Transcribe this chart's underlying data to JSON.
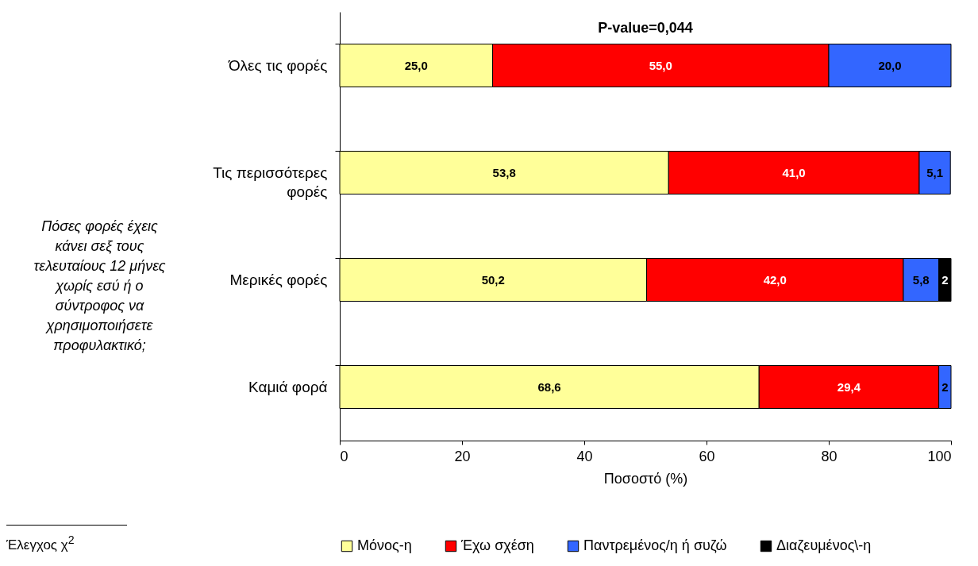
{
  "chart_data": {
    "type": "bar",
    "orientation": "horizontal",
    "stacked": true,
    "title": "P-value=0,044",
    "xlabel": "Ποσοστό (%)",
    "ylabel": "Πόσες φορές έχεις κάνει σεξ τους τελευταίους 12 μήνες χωρίς εσύ ή ο σύντροφος να χρησιμοποιήσετε προφυλακτικό;",
    "categories": [
      "Όλες τις φορές",
      "Τις περισσότερες φορές",
      "Μερικές φορές",
      "Καμιά φορά"
    ],
    "series": [
      {
        "name": "Μόνος-η",
        "color": "#ffff99",
        "values": [
          25.0,
          53.8,
          50.2,
          68.6
        ],
        "value_labels": [
          "25,0",
          "53,8",
          "50,2",
          "68,6"
        ]
      },
      {
        "name": "Έχω σχέση",
        "color": "#ff0000",
        "values": [
          55.0,
          41.0,
          42.0,
          29.4
        ],
        "value_labels": [
          "55,0",
          "41,0",
          "42,0",
          "29,4"
        ]
      },
      {
        "name": "Παντρεμένος/η ή συζώ",
        "color": "#3366ff",
        "values": [
          20.0,
          5.1,
          5.8,
          2
        ],
        "value_labels": [
          "20,0",
          "5,1",
          "5,8",
          "2"
        ]
      },
      {
        "name": "Διαζευμένος\\-η",
        "color": "#000000",
        "values": [
          null,
          null,
          2,
          null
        ],
        "value_labels": [
          null,
          null,
          "2",
          null
        ]
      }
    ],
    "xlim": [
      0,
      100
    ],
    "xticks": [
      0,
      20,
      40,
      60,
      80,
      100
    ],
    "grid": false,
    "legend": "bottom",
    "annotations": [
      "Έλεγχος χ$^{2}$"
    ]
  }
}
